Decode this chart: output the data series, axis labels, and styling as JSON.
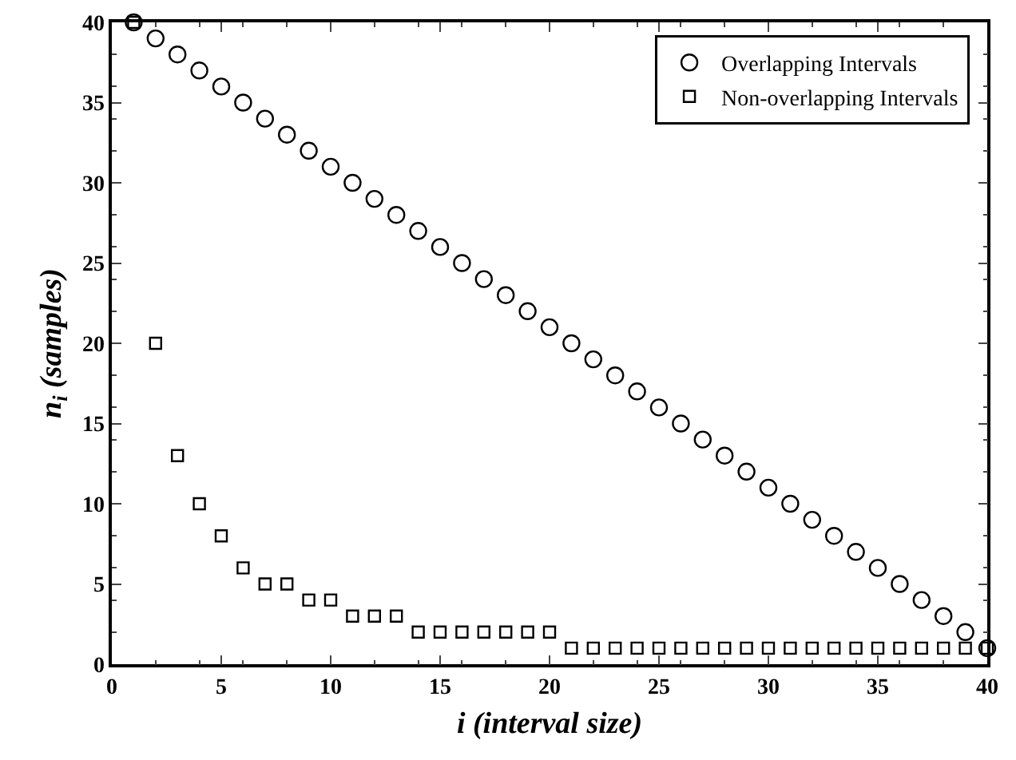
{
  "chart_data": {
    "type": "scatter",
    "xlabel": "i (interval size)",
    "ylabel": "n$_{i}$ (samples)",
    "x": [
      1,
      2,
      3,
      4,
      5,
      6,
      7,
      8,
      9,
      10,
      11,
      12,
      13,
      14,
      15,
      16,
      17,
      18,
      19,
      20,
      21,
      22,
      23,
      24,
      25,
      26,
      27,
      28,
      29,
      30,
      31,
      32,
      33,
      34,
      35,
      36,
      37,
      38,
      39,
      40
    ],
    "series": [
      {
        "name": "Overlapping Intervals",
        "color": "#000000",
        "marker": "circle",
        "values": [
          40,
          39,
          38,
          37,
          36,
          35,
          34,
          33,
          32,
          31,
          30,
          29,
          28,
          27,
          26,
          25,
          24,
          23,
          22,
          21,
          20,
          19,
          18,
          17,
          16,
          15,
          14,
          13,
          12,
          11,
          10,
          9,
          8,
          7,
          6,
          5,
          4,
          3,
          2,
          1
        ]
      },
      {
        "name": "Non-overlapping Intervals",
        "color": "#000000",
        "marker": "square",
        "values": [
          40,
          20,
          13,
          10,
          8,
          6,
          5,
          5,
          4,
          4,
          3,
          3,
          3,
          2,
          2,
          2,
          2,
          2,
          2,
          2,
          1,
          1,
          1,
          1,
          1,
          1,
          1,
          1,
          1,
          1,
          1,
          1,
          1,
          1,
          1,
          1,
          1,
          1,
          1,
          1
        ]
      }
    ],
    "xlim": [
      0,
      40
    ],
    "xticks": [
      0,
      5,
      10,
      15,
      20,
      25,
      30,
      35,
      40
    ],
    "ylim": [
      0,
      40
    ],
    "yticks": [
      0,
      5,
      10,
      15,
      20,
      25,
      30,
      35,
      40
    ],
    "grid": false,
    "legend": "top right"
  }
}
